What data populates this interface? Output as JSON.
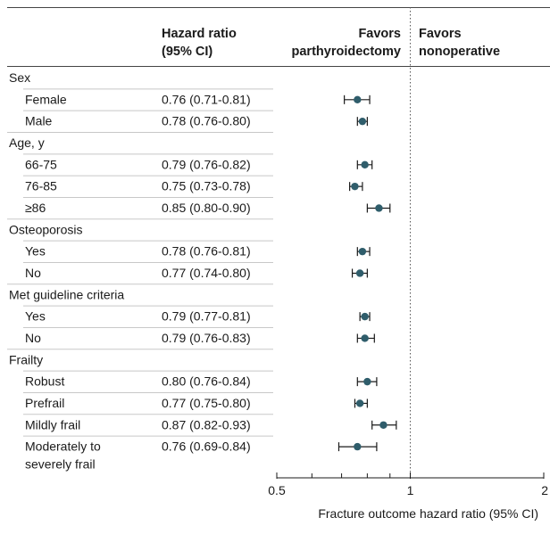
{
  "chart_data": {
    "type": "forest",
    "columns": {
      "estimate_header": [
        "Hazard ratio",
        "(95% CI)"
      ],
      "favors_left": [
        "Favors",
        "parthyroidectomy"
      ],
      "favors_right": [
        "Favors",
        "nonoperative"
      ]
    },
    "xlabel": "Fracture outcome hazard ratio (95% CI)",
    "xscale": "log",
    "xlim": [
      0.5,
      2
    ],
    "reference_line": 1,
    "ticks": [
      {
        "value": 0.5,
        "label": "0.5"
      },
      {
        "value": 1,
        "label": "1"
      },
      {
        "value": 2,
        "label": "2"
      }
    ],
    "minor_ticks": [
      0.6,
      0.7,
      0.8,
      0.9
    ],
    "marker_color": "#2f5d6b",
    "groups": [
      {
        "label": "Sex",
        "rows": [
          {
            "label": [
              "Female"
            ],
            "hr_text": "0.76 (0.71-0.81)",
            "hr": 0.76,
            "lo": 0.71,
            "hi": 0.81
          },
          {
            "label": [
              "Male"
            ],
            "hr_text": "0.78 (0.76-0.80)",
            "hr": 0.78,
            "lo": 0.76,
            "hi": 0.8
          }
        ]
      },
      {
        "label": "Age, y",
        "rows": [
          {
            "label": [
              "66-75"
            ],
            "hr_text": "0.79 (0.76-0.82)",
            "hr": 0.79,
            "lo": 0.76,
            "hi": 0.82
          },
          {
            "label": [
              "76-85"
            ],
            "hr_text": "0.75 (0.73-0.78)",
            "hr": 0.75,
            "lo": 0.73,
            "hi": 0.78
          },
          {
            "label": [
              "≥86"
            ],
            "hr_text": "0.85 (0.80-0.90)",
            "hr": 0.85,
            "lo": 0.8,
            "hi": 0.9
          }
        ]
      },
      {
        "label": "Osteoporosis",
        "rows": [
          {
            "label": [
              "Yes"
            ],
            "hr_text": "0.78 (0.76-0.81)",
            "hr": 0.78,
            "lo": 0.76,
            "hi": 0.81
          },
          {
            "label": [
              "No"
            ],
            "hr_text": "0.77 (0.74-0.80)",
            "hr": 0.77,
            "lo": 0.74,
            "hi": 0.8
          }
        ]
      },
      {
        "label": "Met guideline criteria",
        "rows": [
          {
            "label": [
              "Yes"
            ],
            "hr_text": "0.79 (0.77-0.81)",
            "hr": 0.79,
            "lo": 0.77,
            "hi": 0.81
          },
          {
            "label": [
              "No"
            ],
            "hr_text": "0.79 (0.76-0.83)",
            "hr": 0.79,
            "lo": 0.76,
            "hi": 0.83
          }
        ]
      },
      {
        "label": "Frailty",
        "rows": [
          {
            "label": [
              "Robust"
            ],
            "hr_text": "0.80 (0.76-0.84)",
            "hr": 0.8,
            "lo": 0.76,
            "hi": 0.84
          },
          {
            "label": [
              "Prefrail"
            ],
            "hr_text": "0.77 (0.75-0.80)",
            "hr": 0.77,
            "lo": 0.75,
            "hi": 0.8
          },
          {
            "label": [
              "Mildly frail"
            ],
            "hr_text": "0.87 (0.82-0.93)",
            "hr": 0.87,
            "lo": 0.82,
            "hi": 0.93
          },
          {
            "label": [
              "Moderately to",
              "severely frail"
            ],
            "hr_text": "0.76 (0.69-0.84)",
            "hr": 0.76,
            "lo": 0.69,
            "hi": 0.84
          }
        ]
      }
    ]
  }
}
